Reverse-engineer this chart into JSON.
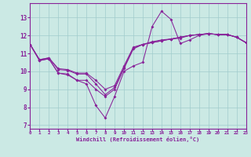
{
  "xlabel": "Windchill (Refroidissement éolien,°C)",
  "xlim": [
    0,
    23
  ],
  "ylim": [
    6.8,
    13.8
  ],
  "xticks": [
    0,
    1,
    2,
    3,
    4,
    5,
    6,
    7,
    8,
    9,
    10,
    11,
    12,
    13,
    14,
    15,
    16,
    17,
    18,
    19,
    20,
    21,
    22,
    23
  ],
  "yticks": [
    7,
    8,
    9,
    10,
    11,
    12,
    13
  ],
  "bg_color": "#cbe9e4",
  "grid_color": "#a0cccc",
  "line_color": "#882299",
  "lines": [
    [
      11.5,
      10.6,
      10.7,
      9.9,
      9.8,
      9.5,
      9.3,
      8.1,
      7.4,
      8.6,
      10.0,
      10.3,
      10.5,
      12.5,
      13.35,
      12.9,
      11.55,
      11.75,
      12.0,
      12.1,
      12.05,
      12.05,
      11.9,
      11.6
    ],
    [
      11.5,
      10.6,
      10.7,
      9.9,
      9.85,
      9.5,
      9.5,
      9.0,
      8.6,
      9.0,
      10.15,
      11.25,
      11.5,
      11.65,
      11.75,
      11.8,
      11.85,
      12.0,
      12.05,
      12.1,
      12.05,
      12.05,
      11.9,
      11.6
    ],
    [
      11.5,
      10.65,
      10.75,
      10.1,
      10.05,
      9.85,
      9.85,
      9.3,
      8.7,
      9.1,
      10.2,
      11.3,
      11.5,
      11.6,
      11.7,
      11.8,
      11.9,
      12.0,
      12.05,
      12.1,
      12.05,
      12.05,
      11.9,
      11.6
    ],
    [
      11.5,
      10.65,
      10.75,
      10.15,
      10.1,
      9.9,
      9.9,
      9.5,
      9.0,
      9.2,
      10.3,
      11.35,
      11.5,
      11.6,
      11.7,
      11.8,
      11.9,
      12.0,
      12.05,
      12.1,
      12.05,
      12.05,
      11.9,
      11.6
    ]
  ]
}
